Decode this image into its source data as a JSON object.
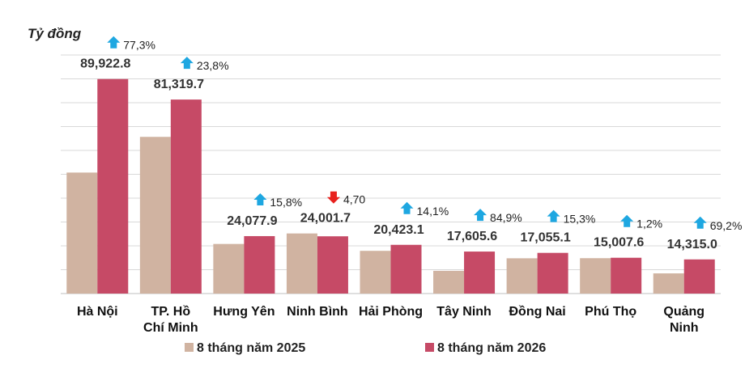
{
  "chart_data": {
    "type": "bar",
    "unit_label": "Tỷ đồng",
    "categories": [
      [
        "Hà Nội"
      ],
      [
        "TP. Hồ",
        "Chí Minh"
      ],
      [
        "Hưng Yên"
      ],
      [
        "Ninh Bình"
      ],
      [
        "Hải Phòng"
      ],
      [
        "Tây Ninh"
      ],
      [
        "Đồng Nai"
      ],
      [
        "Phú Thọ"
      ],
      [
        "Quảng",
        "Ninh"
      ]
    ],
    "series": [
      {
        "name": "8 tháng năm 2025",
        "color": "#d0b3a1",
        "values": [
          50720,
          65680,
          20790,
          25190,
          17900,
          9520,
          14790,
          14830,
          8460
        ]
      },
      {
        "name": "8 tháng năm 2026",
        "color": "#c64a66",
        "values": [
          89922.8,
          81319.7,
          24077.9,
          24001.7,
          20423.1,
          17605.6,
          17055.1,
          15007.6,
          14315.0
        ],
        "value_labels": [
          "89,922.8",
          "81,319.7",
          "24,077.9",
          "24,001.7",
          "20,423.1",
          "17,605.6",
          "17,055.1",
          "15,007.6",
          "14,315.0"
        ]
      }
    ],
    "changes": [
      {
        "label": "77,3%",
        "direction": "up"
      },
      {
        "label": "23,8%",
        "direction": "up"
      },
      {
        "label": "15,8%",
        "direction": "up"
      },
      {
        "label": "4,70",
        "direction": "down"
      },
      {
        "label": "14,1%",
        "direction": "up"
      },
      {
        "label": "84,9%",
        "direction": "up"
      },
      {
        "label": "15,3%",
        "direction": "up"
      },
      {
        "label": "1,2%",
        "direction": "up"
      },
      {
        "label": "69,2%",
        "direction": "up"
      }
    ],
    "arrow_colors": {
      "up": "#1ea7e1",
      "down": "#e8211d"
    },
    "ylim": [
      0,
      100000
    ],
    "gridlines": true,
    "legend_position": "bottom"
  }
}
